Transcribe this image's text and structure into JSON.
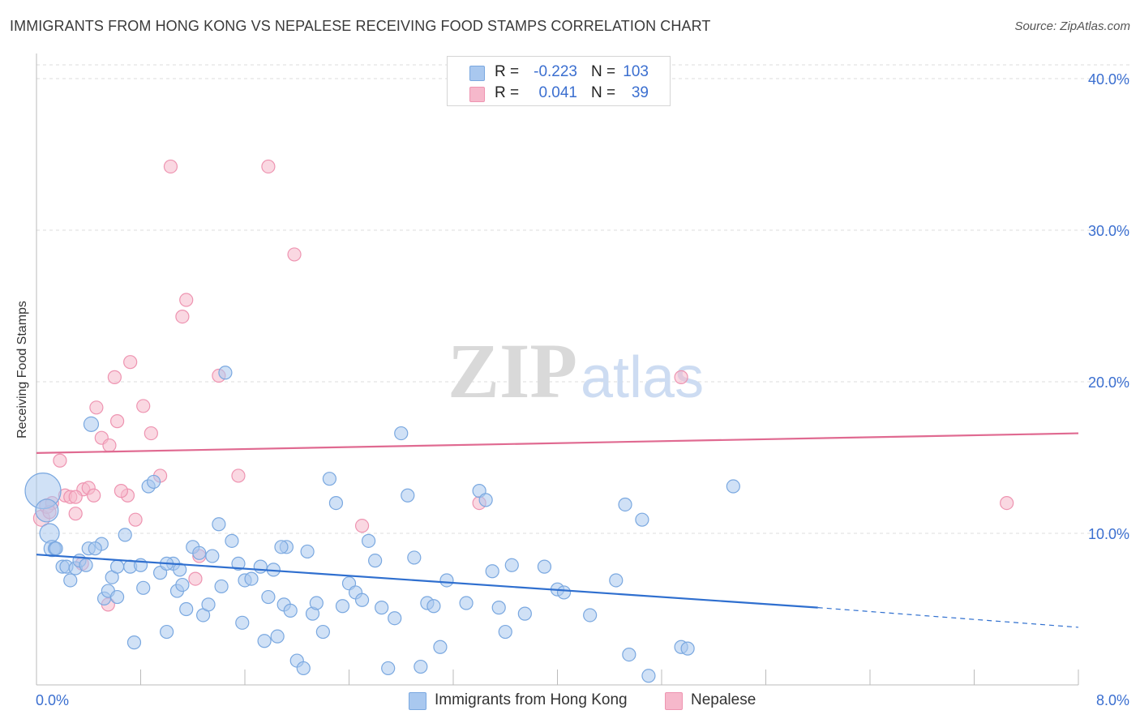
{
  "header": {
    "title": "IMMIGRANTS FROM HONG KONG VS NEPALESE RECEIVING FOOD STAMPS CORRELATION CHART",
    "source": "Source: ZipAtlas.com"
  },
  "watermark": {
    "zip": "ZIP",
    "atlas": "atlas"
  },
  "legend": {
    "series1": {
      "r_label": "R =",
      "r_value": "-0.223",
      "n_label": "N =",
      "n_value": "103"
    },
    "series2": {
      "r_label": "R =",
      "r_value": "0.041",
      "n_label": "N =",
      "n_value": "39"
    }
  },
  "bottom_legend": {
    "series1_label": "Immigrants from Hong Kong",
    "series2_label": "Nepalese"
  },
  "colors": {
    "blue_fill": "#a9c8ef",
    "blue_stroke": "#7aa8e0",
    "blue_line": "#2f6fcf",
    "pink_fill": "#f6b8cb",
    "pink_stroke": "#ee94b1",
    "pink_line": "#e06a91",
    "tick_text": "#3b6fd0",
    "grid": "#dcdcdc"
  },
  "chart_data": {
    "type": "scatter",
    "title": "IMMIGRANTS FROM HONG KONG VS NEPALESE RECEIVING FOOD STAMPS CORRELATION CHART",
    "xlabel": "",
    "ylabel": "Receiving Food Stamps",
    "xlim": [
      0,
      8
    ],
    "ylim": [
      0,
      40
    ],
    "x_ticks_labeled": [
      "0.0%",
      "8.0%"
    ],
    "y_ticks": [
      10,
      20,
      30,
      40
    ],
    "y_tick_labels": [
      "10.0%",
      "20.0%",
      "30.0%",
      "40.0%"
    ],
    "grid": "horizontal dashed",
    "legend_position": "top-center",
    "series": [
      {
        "name": "Immigrants from Hong Kong",
        "trend": {
          "x": [
            0,
            6.0
          ],
          "y": [
            8.6,
            5.1
          ],
          "dashed_extension_to": [
            8.0,
            3.8
          ]
        },
        "points": [
          [
            0.05,
            12.8,
            22
          ],
          [
            0.08,
            11.5,
            14
          ],
          [
            0.1,
            10,
            12
          ],
          [
            0.12,
            9,
            10
          ],
          [
            0.14,
            9,
            8
          ],
          [
            0.2,
            7.8,
            8
          ],
          [
            0.23,
            7.8,
            8
          ],
          [
            0.26,
            6.9,
            8
          ],
          [
            0.3,
            7.7,
            8
          ],
          [
            0.33,
            8.2,
            8
          ],
          [
            0.38,
            7.9,
            8
          ],
          [
            0.4,
            9,
            8
          ],
          [
            0.42,
            17.2,
            9
          ],
          [
            0.5,
            9.3,
            8
          ],
          [
            0.52,
            5.7,
            8
          ],
          [
            0.55,
            6.2,
            8
          ],
          [
            0.58,
            7.1,
            8
          ],
          [
            0.62,
            7.8,
            8
          ],
          [
            0.68,
            9.9,
            8
          ],
          [
            0.72,
            7.8,
            8
          ],
          [
            0.75,
            2.8,
            8
          ],
          [
            0.8,
            7.9,
            8
          ],
          [
            0.82,
            6.4,
            8
          ],
          [
            0.86,
            13.1,
            8
          ],
          [
            0.9,
            13.4,
            8
          ],
          [
            0.95,
            7.4,
            8
          ],
          [
            1.0,
            3.5,
            8
          ],
          [
            1.05,
            8.0,
            8
          ],
          [
            1.08,
            6.2,
            8
          ],
          [
            1.12,
            6.6,
            8
          ],
          [
            1.15,
            5.0,
            8
          ],
          [
            1.2,
            9.1,
            8
          ],
          [
            1.25,
            8.7,
            8
          ],
          [
            1.28,
            4.6,
            8
          ],
          [
            1.32,
            5.3,
            8
          ],
          [
            1.35,
            8.5,
            8
          ],
          [
            1.4,
            10.6,
            8
          ],
          [
            1.42,
            6.5,
            8
          ],
          [
            1.45,
            20.6,
            8
          ],
          [
            1.5,
            9.5,
            8
          ],
          [
            1.55,
            8.0,
            8
          ],
          [
            1.58,
            4.1,
            8
          ],
          [
            1.6,
            6.9,
            8
          ],
          [
            1.65,
            7.0,
            8
          ],
          [
            1.72,
            7.8,
            8
          ],
          [
            1.75,
            2.9,
            8
          ],
          [
            1.78,
            5.8,
            8
          ],
          [
            1.82,
            7.6,
            8
          ],
          [
            1.85,
            3.2,
            8
          ],
          [
            1.9,
            5.3,
            8
          ],
          [
            1.92,
            9.1,
            8
          ],
          [
            1.95,
            4.9,
            8
          ],
          [
            2.0,
            1.6,
            8
          ],
          [
            2.05,
            1.1,
            8
          ],
          [
            2.08,
            8.8,
            8
          ],
          [
            2.12,
            4.7,
            8
          ],
          [
            2.15,
            5.4,
            8
          ],
          [
            2.2,
            3.5,
            8
          ],
          [
            2.25,
            13.6,
            8
          ],
          [
            2.3,
            12.0,
            8
          ],
          [
            2.35,
            5.2,
            8
          ],
          [
            2.4,
            6.7,
            8
          ],
          [
            2.45,
            6.1,
            8
          ],
          [
            2.5,
            5.6,
            8
          ],
          [
            2.55,
            9.5,
            8
          ],
          [
            2.6,
            8.2,
            8
          ],
          [
            2.65,
            5.1,
            8
          ],
          [
            2.7,
            1.1,
            8
          ],
          [
            2.75,
            4.4,
            8
          ],
          [
            2.8,
            16.6,
            8
          ],
          [
            2.85,
            12.5,
            8
          ],
          [
            2.9,
            8.4,
            8
          ],
          [
            2.95,
            1.2,
            8
          ],
          [
            3.0,
            5.4,
            8
          ],
          [
            3.05,
            5.2,
            8
          ],
          [
            3.1,
            2.5,
            8
          ],
          [
            3.15,
            6.9,
            8
          ],
          [
            3.3,
            5.4,
            8
          ],
          [
            3.4,
            12.8,
            8
          ],
          [
            3.45,
            12.2,
            8
          ],
          [
            3.5,
            7.5,
            8
          ],
          [
            3.55,
            5.1,
            8
          ],
          [
            3.6,
            3.5,
            8
          ],
          [
            3.65,
            7.9,
            8
          ],
          [
            3.75,
            4.7,
            8
          ],
          [
            3.9,
            7.8,
            8
          ],
          [
            4.0,
            6.3,
            8
          ],
          [
            4.05,
            6.1,
            8
          ],
          [
            4.25,
            4.6,
            8
          ],
          [
            4.45,
            6.9,
            8
          ],
          [
            4.52,
            11.9,
            8
          ],
          [
            4.55,
            2.0,
            8
          ],
          [
            4.65,
            10.9,
            8
          ],
          [
            4.7,
            0.6,
            8
          ],
          [
            4.95,
            2.5,
            8
          ],
          [
            5.0,
            2.4,
            8
          ],
          [
            5.35,
            13.1,
            8
          ],
          [
            0.15,
            9.0,
            8
          ],
          [
            0.45,
            9.0,
            8
          ],
          [
            1.0,
            8.0,
            8
          ],
          [
            1.88,
            9.1,
            8
          ],
          [
            0.62,
            5.8,
            8
          ],
          [
            1.1,
            7.6,
            8
          ]
        ]
      },
      {
        "name": "Nepalese",
        "trend": {
          "x": [
            0,
            8.0
          ],
          "y": [
            15.3,
            16.6
          ]
        },
        "points": [
          [
            0.04,
            11.0,
            10
          ],
          [
            0.08,
            11.8,
            9
          ],
          [
            0.12,
            12.0,
            8
          ],
          [
            0.18,
            14.8,
            8
          ],
          [
            0.22,
            12.5,
            8
          ],
          [
            0.26,
            12.4,
            8
          ],
          [
            0.3,
            11.3,
            8
          ],
          [
            0.36,
            12.9,
            8
          ],
          [
            0.4,
            13.0,
            8
          ],
          [
            0.44,
            12.5,
            8
          ],
          [
            0.46,
            18.3,
            8
          ],
          [
            0.5,
            16.3,
            8
          ],
          [
            0.56,
            15.8,
            8
          ],
          [
            0.6,
            20.3,
            8
          ],
          [
            0.62,
            17.4,
            8
          ],
          [
            0.7,
            12.5,
            8
          ],
          [
            0.72,
            21.3,
            8
          ],
          [
            0.76,
            10.9,
            8
          ],
          [
            0.82,
            18.4,
            8
          ],
          [
            0.88,
            16.6,
            8
          ],
          [
            0.95,
            13.8,
            8
          ],
          [
            1.03,
            34.2,
            8
          ],
          [
            1.12,
            24.3,
            8
          ],
          [
            1.15,
            25.4,
            8
          ],
          [
            1.22,
            7.0,
            8
          ],
          [
            1.25,
            8.5,
            8
          ],
          [
            1.4,
            20.4,
            8
          ],
          [
            1.55,
            13.8,
            8
          ],
          [
            1.78,
            34.2,
            8
          ],
          [
            1.98,
            28.4,
            8
          ],
          [
            2.5,
            10.5,
            8
          ],
          [
            3.4,
            12.0,
            8
          ],
          [
            4.95,
            20.3,
            8
          ],
          [
            7.45,
            12.0,
            8
          ],
          [
            0.55,
            5.3,
            8
          ],
          [
            0.35,
            8.0,
            8
          ],
          [
            0.1,
            11.4,
            8
          ],
          [
            0.65,
            12.8,
            8
          ],
          [
            0.3,
            12.4,
            8
          ]
        ]
      }
    ]
  }
}
